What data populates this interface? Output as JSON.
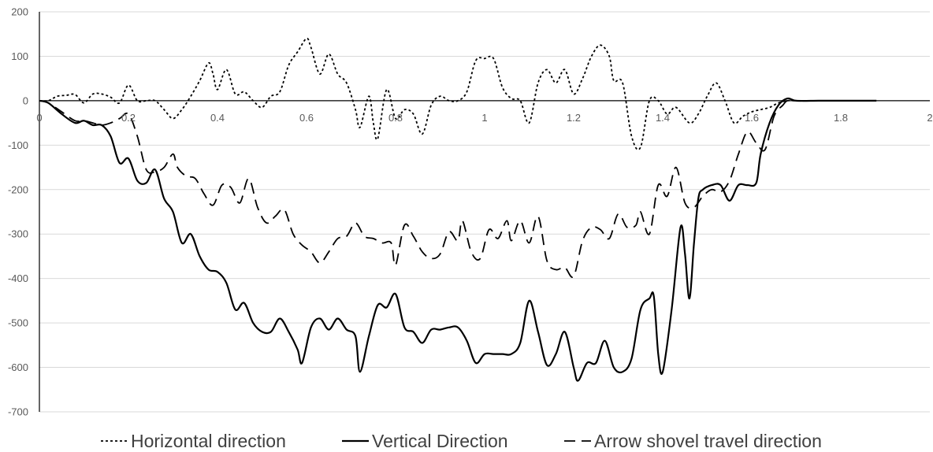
{
  "chart_data": {
    "type": "line",
    "title": "",
    "xlabel": "",
    "ylabel": "",
    "xlim": [
      0,
      2
    ],
    "ylim": [
      -700,
      200
    ],
    "x_ticks": [
      0,
      0.2,
      0.4,
      0.6,
      0.8,
      1,
      1.2,
      1.4,
      1.6,
      1.8,
      2
    ],
    "x_tick_labels": [
      "0",
      "0.2",
      "0.4",
      "0.6",
      "0.8",
      "1",
      "1.2",
      "1.4",
      "1.6",
      "1.8",
      "2"
    ],
    "y_ticks": [
      200,
      100,
      0,
      -100,
      -200,
      -300,
      -400,
      -500,
      -600,
      -700
    ],
    "y_tick_labels": [
      "200",
      "100",
      "0",
      "-100",
      "-200",
      "-300",
      "-400",
      "-500",
      "-600",
      "-700"
    ],
    "grid": "horizontal",
    "legend_position": "bottom",
    "series": [
      {
        "name": "Horizontal direction",
        "dash": "dotted",
        "color": "#000000",
        "points": [
          [
            0,
            0
          ],
          [
            0.02,
            0
          ],
          [
            0.04,
            10
          ],
          [
            0.06,
            12
          ],
          [
            0.08,
            14
          ],
          [
            0.1,
            -5
          ],
          [
            0.12,
            15
          ],
          [
            0.14,
            15
          ],
          [
            0.16,
            8
          ],
          [
            0.18,
            -5
          ],
          [
            0.2,
            35
          ],
          [
            0.22,
            0
          ],
          [
            0.24,
            0
          ],
          [
            0.26,
            0
          ],
          [
            0.28,
            -20
          ],
          [
            0.3,
            -40
          ],
          [
            0.32,
            -20
          ],
          [
            0.34,
            10
          ],
          [
            0.36,
            45
          ],
          [
            0.38,
            85
          ],
          [
            0.39,
            60
          ],
          [
            0.4,
            25
          ],
          [
            0.42,
            70
          ],
          [
            0.44,
            15
          ],
          [
            0.46,
            20
          ],
          [
            0.48,
            0
          ],
          [
            0.5,
            -15
          ],
          [
            0.52,
            10
          ],
          [
            0.54,
            20
          ],
          [
            0.56,
            80
          ],
          [
            0.58,
            110
          ],
          [
            0.6,
            140
          ],
          [
            0.61,
            120
          ],
          [
            0.63,
            60
          ],
          [
            0.65,
            105
          ],
          [
            0.67,
            60
          ],
          [
            0.69,
            40
          ],
          [
            0.71,
            -20
          ],
          [
            0.72,
            -60
          ],
          [
            0.74,
            10
          ],
          [
            0.75,
            -50
          ],
          [
            0.76,
            -85
          ],
          [
            0.78,
            25
          ],
          [
            0.8,
            -40
          ],
          [
            0.82,
            -20
          ],
          [
            0.84,
            -30
          ],
          [
            0.86,
            -75
          ],
          [
            0.88,
            -10
          ],
          [
            0.9,
            10
          ],
          [
            0.92,
            0
          ],
          [
            0.94,
            0
          ],
          [
            0.96,
            20
          ],
          [
            0.98,
            90
          ],
          [
            1.0,
            95
          ],
          [
            1.02,
            95
          ],
          [
            1.04,
            30
          ],
          [
            1.06,
            5
          ],
          [
            1.08,
            0
          ],
          [
            1.1,
            -50
          ],
          [
            1.12,
            40
          ],
          [
            1.14,
            70
          ],
          [
            1.16,
            40
          ],
          [
            1.18,
            70
          ],
          [
            1.2,
            15
          ],
          [
            1.22,
            50
          ],
          [
            1.24,
            100
          ],
          [
            1.26,
            125
          ],
          [
            1.28,
            100
          ],
          [
            1.29,
            45
          ],
          [
            1.31,
            40
          ],
          [
            1.33,
            -80
          ],
          [
            1.35,
            -105
          ],
          [
            1.37,
            0
          ],
          [
            1.39,
            0
          ],
          [
            1.41,
            -30
          ],
          [
            1.43,
            -15
          ],
          [
            1.46,
            -50
          ],
          [
            1.48,
            -30
          ],
          [
            1.5,
            10
          ],
          [
            1.52,
            40
          ],
          [
            1.54,
            0
          ],
          [
            1.56,
            -50
          ],
          [
            1.58,
            -35
          ],
          [
            1.6,
            -25
          ],
          [
            1.62,
            -20
          ],
          [
            1.64,
            -15
          ],
          [
            1.66,
            -5
          ],
          [
            1.68,
            0
          ],
          [
            1.7,
            0
          ],
          [
            1.75,
            0
          ],
          [
            1.8,
            0
          ],
          [
            1.88,
            0
          ]
        ]
      },
      {
        "name": "Vertical Direction",
        "dash": "solid",
        "color": "#000000",
        "points": [
          [
            0,
            0
          ],
          [
            0.02,
            -5
          ],
          [
            0.05,
            -30
          ],
          [
            0.08,
            -50
          ],
          [
            0.1,
            -45
          ],
          [
            0.12,
            -55
          ],
          [
            0.14,
            -55
          ],
          [
            0.16,
            -80
          ],
          [
            0.18,
            -140
          ],
          [
            0.2,
            -130
          ],
          [
            0.22,
            -180
          ],
          [
            0.24,
            -185
          ],
          [
            0.26,
            -155
          ],
          [
            0.28,
            -220
          ],
          [
            0.3,
            -250
          ],
          [
            0.32,
            -320
          ],
          [
            0.34,
            -300
          ],
          [
            0.36,
            -350
          ],
          [
            0.38,
            -380
          ],
          [
            0.4,
            -385
          ],
          [
            0.42,
            -410
          ],
          [
            0.44,
            -470
          ],
          [
            0.46,
            -455
          ],
          [
            0.48,
            -500
          ],
          [
            0.5,
            -520
          ],
          [
            0.52,
            -520
          ],
          [
            0.54,
            -490
          ],
          [
            0.56,
            -520
          ],
          [
            0.58,
            -560
          ],
          [
            0.59,
            -590
          ],
          [
            0.61,
            -510
          ],
          [
            0.63,
            -490
          ],
          [
            0.65,
            -515
          ],
          [
            0.67,
            -490
          ],
          [
            0.69,
            -515
          ],
          [
            0.71,
            -530
          ],
          [
            0.72,
            -610
          ],
          [
            0.74,
            -530
          ],
          [
            0.76,
            -460
          ],
          [
            0.78,
            -465
          ],
          [
            0.8,
            -435
          ],
          [
            0.82,
            -510
          ],
          [
            0.84,
            -520
          ],
          [
            0.86,
            -545
          ],
          [
            0.88,
            -515
          ],
          [
            0.9,
            -515
          ],
          [
            0.92,
            -510
          ],
          [
            0.94,
            -510
          ],
          [
            0.96,
            -540
          ],
          [
            0.98,
            -590
          ],
          [
            1.0,
            -570
          ],
          [
            1.02,
            -570
          ],
          [
            1.04,
            -570
          ],
          [
            1.06,
            -570
          ],
          [
            1.08,
            -545
          ],
          [
            1.1,
            -450
          ],
          [
            1.12,
            -520
          ],
          [
            1.14,
            -595
          ],
          [
            1.16,
            -570
          ],
          [
            1.18,
            -520
          ],
          [
            1.2,
            -600
          ],
          [
            1.21,
            -630
          ],
          [
            1.23,
            -590
          ],
          [
            1.25,
            -590
          ],
          [
            1.27,
            -540
          ],
          [
            1.29,
            -600
          ],
          [
            1.31,
            -610
          ],
          [
            1.33,
            -580
          ],
          [
            1.35,
            -470
          ],
          [
            1.37,
            -445
          ],
          [
            1.38,
            -440
          ],
          [
            1.39,
            -570
          ],
          [
            1.4,
            -610
          ],
          [
            1.42,
            -470
          ],
          [
            1.44,
            -285
          ],
          [
            1.45,
            -345
          ],
          [
            1.46,
            -445
          ],
          [
            1.47,
            -325
          ],
          [
            1.48,
            -220
          ],
          [
            1.49,
            -200
          ],
          [
            1.51,
            -190
          ],
          [
            1.53,
            -190
          ],
          [
            1.55,
            -225
          ],
          [
            1.57,
            -190
          ],
          [
            1.59,
            -190
          ],
          [
            1.61,
            -185
          ],
          [
            1.62,
            -120
          ],
          [
            1.64,
            -50
          ],
          [
            1.66,
            -10
          ],
          [
            1.68,
            5
          ],
          [
            1.7,
            0
          ],
          [
            1.75,
            0
          ],
          [
            1.8,
            0
          ],
          [
            1.88,
            0
          ]
        ]
      },
      {
        "name": "Arrow shovel travel direction",
        "dash": "dashed",
        "color": "#000000",
        "points": [
          [
            0,
            0
          ],
          [
            0.02,
            -5
          ],
          [
            0.05,
            -25
          ],
          [
            0.08,
            -45
          ],
          [
            0.1,
            -45
          ],
          [
            0.12,
            -50
          ],
          [
            0.14,
            -55
          ],
          [
            0.16,
            -50
          ],
          [
            0.18,
            -40
          ],
          [
            0.2,
            -30
          ],
          [
            0.22,
            -80
          ],
          [
            0.24,
            -155
          ],
          [
            0.26,
            -160
          ],
          [
            0.28,
            -150
          ],
          [
            0.3,
            -120
          ],
          [
            0.31,
            -150
          ],
          [
            0.33,
            -170
          ],
          [
            0.35,
            -175
          ],
          [
            0.37,
            -210
          ],
          [
            0.39,
            -235
          ],
          [
            0.41,
            -190
          ],
          [
            0.43,
            -195
          ],
          [
            0.45,
            -230
          ],
          [
            0.47,
            -175
          ],
          [
            0.49,
            -240
          ],
          [
            0.51,
            -275
          ],
          [
            0.53,
            -260
          ],
          [
            0.55,
            -245
          ],
          [
            0.57,
            -300
          ],
          [
            0.59,
            -325
          ],
          [
            0.61,
            -340
          ],
          [
            0.63,
            -365
          ],
          [
            0.65,
            -340
          ],
          [
            0.67,
            -310
          ],
          [
            0.69,
            -305
          ],
          [
            0.71,
            -275
          ],
          [
            0.73,
            -305
          ],
          [
            0.75,
            -310
          ],
          [
            0.77,
            -320
          ],
          [
            0.79,
            -320
          ],
          [
            0.8,
            -370
          ],
          [
            0.82,
            -280
          ],
          [
            0.84,
            -305
          ],
          [
            0.86,
            -340
          ],
          [
            0.88,
            -355
          ],
          [
            0.9,
            -345
          ],
          [
            0.92,
            -295
          ],
          [
            0.94,
            -315
          ],
          [
            0.95,
            -270
          ],
          [
            0.97,
            -340
          ],
          [
            0.99,
            -355
          ],
          [
            1.01,
            -290
          ],
          [
            1.03,
            -310
          ],
          [
            1.05,
            -270
          ],
          [
            1.06,
            -315
          ],
          [
            1.08,
            -270
          ],
          [
            1.1,
            -320
          ],
          [
            1.12,
            -260
          ],
          [
            1.14,
            -360
          ],
          [
            1.16,
            -380
          ],
          [
            1.18,
            -375
          ],
          [
            1.2,
            -395
          ],
          [
            1.22,
            -315
          ],
          [
            1.24,
            -285
          ],
          [
            1.26,
            -290
          ],
          [
            1.28,
            -310
          ],
          [
            1.3,
            -255
          ],
          [
            1.32,
            -285
          ],
          [
            1.34,
            -280
          ],
          [
            1.35,
            -250
          ],
          [
            1.37,
            -300
          ],
          [
            1.39,
            -190
          ],
          [
            1.41,
            -215
          ],
          [
            1.43,
            -150
          ],
          [
            1.45,
            -230
          ],
          [
            1.47,
            -240
          ],
          [
            1.49,
            -215
          ],
          [
            1.51,
            -200
          ],
          [
            1.53,
            -205
          ],
          [
            1.55,
            -180
          ],
          [
            1.57,
            -120
          ],
          [
            1.59,
            -70
          ],
          [
            1.61,
            -95
          ],
          [
            1.63,
            -110
          ],
          [
            1.65,
            -35
          ],
          [
            1.67,
            -10
          ],
          [
            1.68,
            0
          ],
          [
            1.7,
            0
          ],
          [
            1.75,
            0
          ],
          [
            1.8,
            0
          ],
          [
            1.88,
            0
          ]
        ]
      }
    ]
  }
}
